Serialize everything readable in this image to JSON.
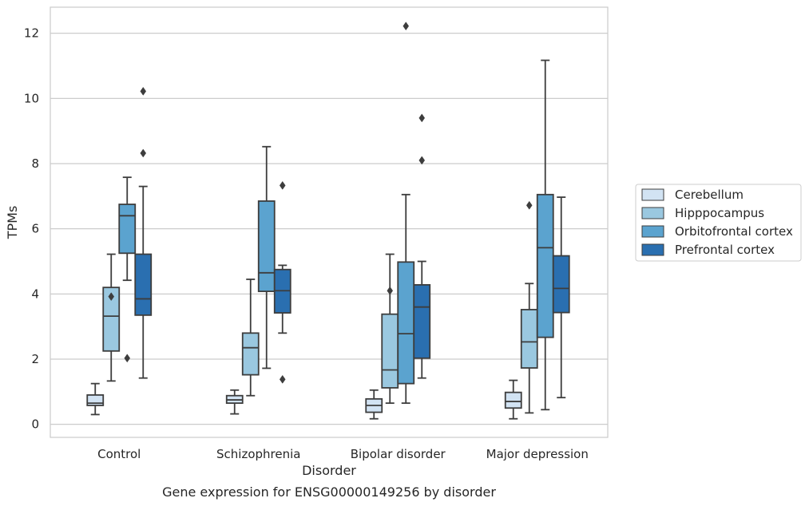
{
  "chart_data": {
    "type": "boxplot",
    "caption": "Gene expression for ENSG00000149256 by disorder",
    "xlabel": "Disorder",
    "ylabel": "TPMs",
    "ylim": [
      -0.4,
      12.8
    ],
    "yticks": [
      0,
      2,
      4,
      6,
      8,
      10,
      12
    ],
    "grid": "horizontal",
    "legend_position": "right",
    "categories": [
      "Control",
      "Schizophrenia",
      "Bipolar disorder",
      "Major depression"
    ],
    "series": [
      {
        "name": "Cerebellum",
        "color": "#d2e3f3",
        "boxes": [
          {
            "whislo": 0.3,
            "q1": 0.58,
            "med": 0.65,
            "q3": 0.9,
            "whishi": 1.25,
            "fliers": []
          },
          {
            "whislo": 0.32,
            "q1": 0.65,
            "med": 0.75,
            "q3": 0.88,
            "whishi": 1.05,
            "fliers": []
          },
          {
            "whislo": 0.17,
            "q1": 0.37,
            "med": 0.58,
            "q3": 0.78,
            "whishi": 1.05,
            "fliers": []
          },
          {
            "whislo": 0.17,
            "q1": 0.5,
            "med": 0.7,
            "q3": 0.98,
            "whishi": 1.35,
            "fliers": []
          }
        ]
      },
      {
        "name": "Hipppocampus",
        "color": "#9ac8e0",
        "boxes": [
          {
            "whislo": 1.33,
            "q1": 2.25,
            "med": 3.32,
            "q3": 4.2,
            "whishi": 5.22,
            "fliers": [
              3.92
            ]
          },
          {
            "whislo": 0.88,
            "q1": 1.52,
            "med": 2.35,
            "q3": 2.8,
            "whishi": 4.45,
            "fliers": []
          },
          {
            "whislo": 0.65,
            "q1": 1.12,
            "med": 1.67,
            "q3": 3.38,
            "whishi": 5.22,
            "fliers": [
              4.1
            ]
          },
          {
            "whislo": 0.35,
            "q1": 1.73,
            "med": 2.53,
            "q3": 3.52,
            "whishi": 4.32,
            "fliers": [
              6.72
            ]
          }
        ]
      },
      {
        "name": "Orbitofrontal cortex",
        "color": "#5ba3cf",
        "boxes": [
          {
            "whislo": 4.42,
            "q1": 5.25,
            "med": 6.4,
            "q3": 6.75,
            "whishi": 7.58,
            "fliers": [
              2.03
            ]
          },
          {
            "whislo": 1.72,
            "q1": 4.08,
            "med": 4.65,
            "q3": 6.85,
            "whishi": 8.52,
            "fliers": []
          },
          {
            "whislo": 0.65,
            "q1": 1.25,
            "med": 2.78,
            "q3": 4.98,
            "whishi": 7.05,
            "fliers": [
              12.22
            ]
          },
          {
            "whislo": 0.45,
            "q1": 2.67,
            "med": 5.42,
            "q3": 7.05,
            "whishi": 11.17,
            "fliers": []
          }
        ]
      },
      {
        "name": "Prefrontal cortex",
        "color": "#2a6fb0",
        "boxes": [
          {
            "whislo": 1.42,
            "q1": 3.35,
            "med": 3.85,
            "q3": 5.22,
            "whishi": 7.3,
            "fliers": [
              8.32,
              10.22
            ]
          },
          {
            "whislo": 2.8,
            "q1": 3.42,
            "med": 4.1,
            "q3": 4.75,
            "whishi": 4.88,
            "fliers": [
              1.38,
              7.33
            ]
          },
          {
            "whislo": 1.42,
            "q1": 2.03,
            "med": 3.6,
            "q3": 4.28,
            "whishi": 5.0,
            "fliers": [
              8.1,
              9.4
            ]
          },
          {
            "whislo": 0.82,
            "q1": 3.43,
            "med": 4.17,
            "q3": 5.17,
            "whishi": 6.97,
            "fliers": []
          }
        ]
      }
    ]
  }
}
